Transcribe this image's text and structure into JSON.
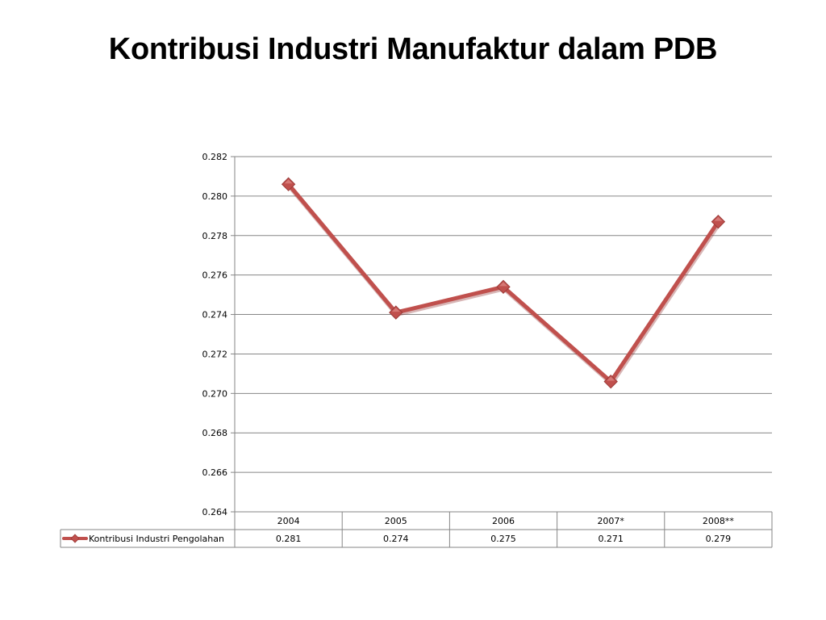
{
  "slide": {
    "title": "Kontribusi Industri Manufaktur dalam PDB"
  },
  "colors": {
    "series": "#C0504D",
    "gridline": "#868686",
    "table_border": "#868686"
  },
  "chart_data": {
    "type": "line",
    "title": "",
    "xlabel": "",
    "ylabel": "",
    "categories": [
      "2004",
      "2005",
      "2006",
      "2007*",
      "2008**"
    ],
    "ylim": [
      0.264,
      0.282
    ],
    "y_ticks": [
      "0.264",
      "0.266",
      "0.268",
      "0.270",
      "0.272",
      "0.274",
      "0.276",
      "0.278",
      "0.280",
      "0.282"
    ],
    "grid": true,
    "legend": "data-table",
    "marker": "diamond",
    "series": [
      {
        "name": "Kontribusi Industri Pengolahan",
        "values": [
          0.2806,
          0.2741,
          0.2754,
          0.2706,
          0.2787
        ],
        "table_labels": [
          "0.281",
          "0.274",
          "0.275",
          "0.271",
          "0.279"
        ]
      }
    ]
  }
}
